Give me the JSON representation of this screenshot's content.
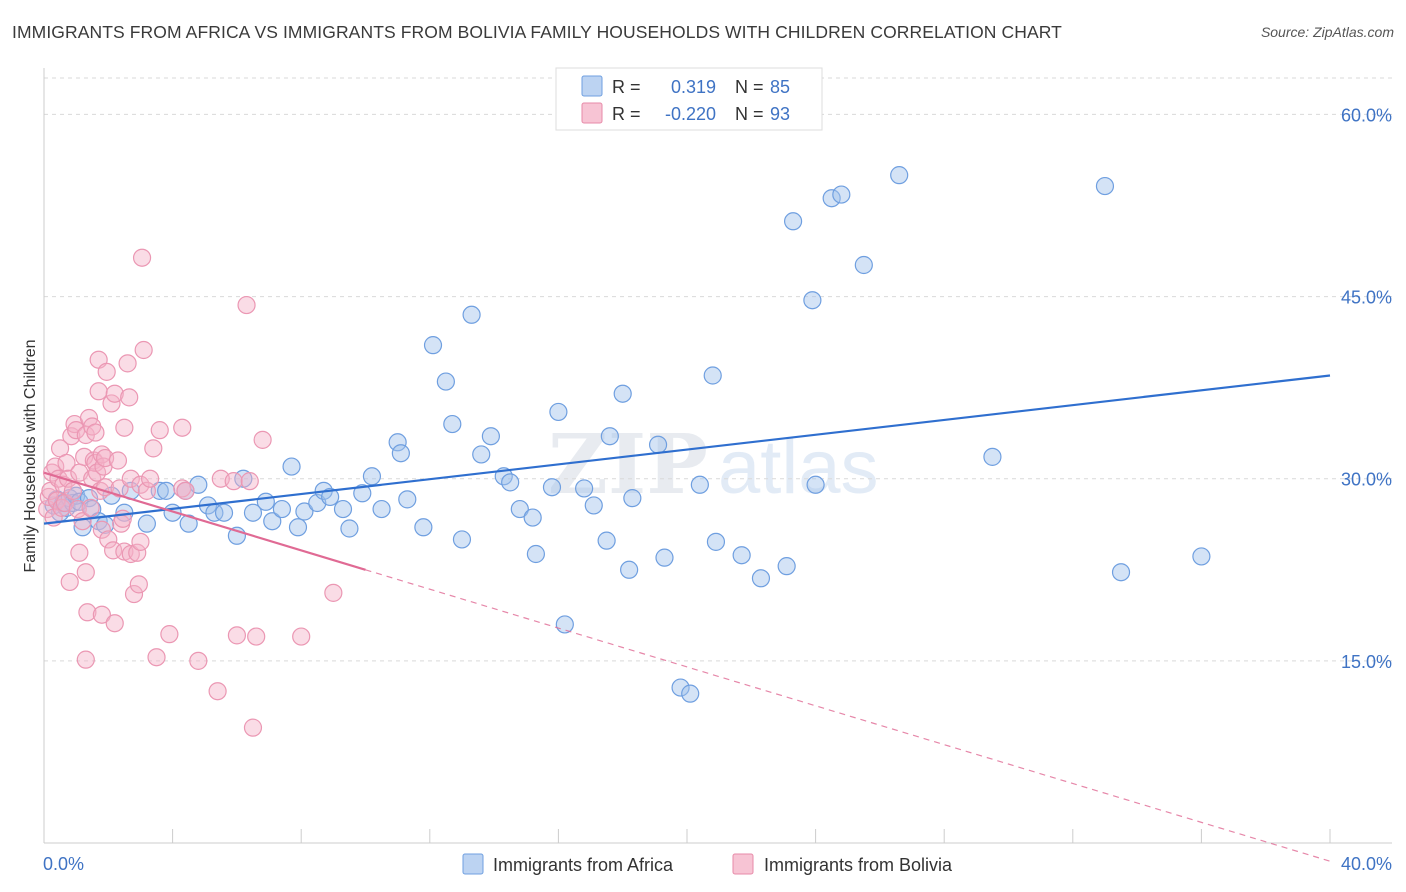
{
  "title": "IMMIGRANTS FROM AFRICA VS IMMIGRANTS FROM BOLIVIA FAMILY HOUSEHOLDS WITH CHILDREN CORRELATION CHART",
  "source": "Source: ZipAtlas.com",
  "watermark": {
    "zip": "ZIP",
    "atlas": "atlas"
  },
  "legend": {
    "r_label": "R =",
    "n_label": "N =",
    "rows": [
      {
        "r": "0.319",
        "n": "85",
        "color": "#6f9fe0",
        "fill": "#bcd3f2"
      },
      {
        "r": "-0.220",
        "n": "93",
        "color": "#e78aa8",
        "fill": "#f7c4d4"
      }
    ]
  },
  "colors": {
    "africa": "#5b8fd6",
    "africa_line": "#2f6fcf",
    "bolivia": "#ef9ab5",
    "bolivia_line": "#e06a94",
    "axis_text": "#3f73c4",
    "grid": "#d9d9d9"
  },
  "chart_data": {
    "type": "scatter",
    "title": "IMMIGRANTS FROM AFRICA VS IMMIGRANTS FROM BOLIVIA FAMILY HOUSEHOLDS WITH CHILDREN CORRELATION CHART",
    "xlabel": "",
    "ylabel": "Family Households with Children",
    "xlim": [
      0,
      40
    ],
    "ylim": [
      0,
      63
    ],
    "x_tick_labels": [
      "0.0%",
      "40.0%"
    ],
    "y_ticks": [
      15,
      30,
      45,
      60
    ],
    "y_tick_labels": [
      "15.0%",
      "30.0%",
      "45.0%",
      "60.0%"
    ],
    "grid": true,
    "legend_position": "top-center",
    "series": [
      {
        "name": "Immigrants from Africa",
        "r": 0.319,
        "n": 85,
        "trend": {
          "x0": 0,
          "y0": 26.3,
          "x1": 40,
          "y1": 38.5
        },
        "points": [
          [
            0.3,
            27.8
          ],
          [
            0.4,
            28.3
          ],
          [
            0.5,
            27.2
          ],
          [
            0.6,
            28.0
          ],
          [
            0.7,
            27.6
          ],
          [
            0.8,
            28.4
          ],
          [
            0.9,
            28.0
          ],
          [
            1.0,
            28.6
          ],
          [
            1.1,
            28.1
          ],
          [
            1.2,
            26.0
          ],
          [
            1.4,
            28.4
          ],
          [
            1.5,
            27.5
          ],
          [
            1.7,
            26.5
          ],
          [
            1.9,
            26.2
          ],
          [
            2.1,
            28.6
          ],
          [
            2.5,
            27.2
          ],
          [
            2.7,
            29.0
          ],
          [
            3.2,
            26.3
          ],
          [
            3.6,
            29.0
          ],
          [
            3.8,
            29.0
          ],
          [
            4.0,
            27.2
          ],
          [
            4.4,
            29.0
          ],
          [
            4.5,
            26.3
          ],
          [
            4.8,
            29.5
          ],
          [
            5.1,
            27.8
          ],
          [
            5.3,
            27.2
          ],
          [
            5.6,
            27.2
          ],
          [
            6.0,
            25.3
          ],
          [
            6.2,
            30.0
          ],
          [
            6.5,
            27.2
          ],
          [
            6.9,
            28.1
          ],
          [
            7.1,
            26.5
          ],
          [
            7.4,
            27.5
          ],
          [
            7.7,
            31.0
          ],
          [
            7.9,
            26.0
          ],
          [
            8.1,
            27.3
          ],
          [
            8.5,
            28.0
          ],
          [
            8.7,
            29.0
          ],
          [
            8.9,
            28.5
          ],
          [
            9.3,
            27.5
          ],
          [
            9.5,
            25.9
          ],
          [
            9.9,
            28.8
          ],
          [
            10.2,
            30.2
          ],
          [
            10.5,
            27.5
          ],
          [
            11.0,
            33.0
          ],
          [
            11.1,
            32.1
          ],
          [
            11.3,
            28.3
          ],
          [
            11.8,
            26.0
          ],
          [
            12.1,
            41.0
          ],
          [
            12.5,
            38.0
          ],
          [
            12.7,
            34.5
          ],
          [
            13.0,
            25.0
          ],
          [
            13.3,
            43.5
          ],
          [
            13.6,
            32.0
          ],
          [
            13.9,
            33.5
          ],
          [
            14.3,
            30.2
          ],
          [
            14.5,
            29.7
          ],
          [
            14.8,
            27.5
          ],
          [
            15.2,
            26.8
          ],
          [
            15.3,
            23.8
          ],
          [
            15.8,
            29.3
          ],
          [
            16.0,
            35.5
          ],
          [
            16.2,
            18.0
          ],
          [
            16.8,
            29.2
          ],
          [
            17.1,
            27.8
          ],
          [
            17.5,
            24.9
          ],
          [
            17.6,
            33.5
          ],
          [
            18.0,
            37.0
          ],
          [
            18.2,
            22.5
          ],
          [
            18.3,
            28.4
          ],
          [
            19.1,
            32.8
          ],
          [
            19.3,
            23.5
          ],
          [
            19.8,
            12.8
          ],
          [
            20.1,
            12.3
          ],
          [
            20.4,
            29.5
          ],
          [
            20.8,
            38.5
          ],
          [
            20.9,
            24.8
          ],
          [
            21.7,
            23.7
          ],
          [
            22.3,
            21.8
          ],
          [
            23.1,
            22.8
          ],
          [
            23.3,
            51.2
          ],
          [
            23.9,
            44.7
          ],
          [
            24.0,
            29.5
          ],
          [
            24.5,
            53.1
          ],
          [
            24.8,
            53.4
          ],
          [
            25.5,
            47.6
          ],
          [
            26.6,
            55.0
          ],
          [
            29.5,
            31.8
          ],
          [
            33.0,
            54.1
          ],
          [
            33.5,
            22.3
          ],
          [
            36.0,
            23.6
          ]
        ]
      },
      {
        "name": "Immigrants from Bolivia",
        "r": -0.22,
        "n": 93,
        "trend": {
          "x0": 0,
          "y0": 30.5,
          "x1": 10,
          "y1": 22.5,
          "dash_x1": 40,
          "dash_y1": -1.5
        },
        "points": [
          [
            0.1,
            27.5
          ],
          [
            0.15,
            28.5
          ],
          [
            0.2,
            29.0
          ],
          [
            0.25,
            30.5
          ],
          [
            0.3,
            26.8
          ],
          [
            0.35,
            31.0
          ],
          [
            0.4,
            28.2
          ],
          [
            0.45,
            30.0
          ],
          [
            0.5,
            32.5
          ],
          [
            0.55,
            27.6
          ],
          [
            0.6,
            29.5
          ],
          [
            0.65,
            28.0
          ],
          [
            0.7,
            31.3
          ],
          [
            0.75,
            30.0
          ],
          [
            0.8,
            21.5
          ],
          [
            0.85,
            33.5
          ],
          [
            0.9,
            29.0
          ],
          [
            0.95,
            34.5
          ],
          [
            1.0,
            34.0
          ],
          [
            1.05,
            27.5
          ],
          [
            1.1,
            30.5
          ],
          [
            1.1,
            23.9
          ],
          [
            1.2,
            26.5
          ],
          [
            1.25,
            31.8
          ],
          [
            1.3,
            33.6
          ],
          [
            1.3,
            22.3
          ],
          [
            1.3,
            15.1
          ],
          [
            1.35,
            19.0
          ],
          [
            1.4,
            35.0
          ],
          [
            1.45,
            27.6
          ],
          [
            1.5,
            30.0
          ],
          [
            1.5,
            34.3
          ],
          [
            1.55,
            31.5
          ],
          [
            1.6,
            33.8
          ],
          [
            1.6,
            31.3
          ],
          [
            1.65,
            30.5
          ],
          [
            1.7,
            37.2
          ],
          [
            1.7,
            39.8
          ],
          [
            1.75,
            29.0
          ],
          [
            1.8,
            32.0
          ],
          [
            1.8,
            18.8
          ],
          [
            1.8,
            25.8
          ],
          [
            1.85,
            31.0
          ],
          [
            1.9,
            29.3
          ],
          [
            1.9,
            31.7
          ],
          [
            1.95,
            38.8
          ],
          [
            2.0,
            25.0
          ],
          [
            2.1,
            36.2
          ],
          [
            2.15,
            24.1
          ],
          [
            2.2,
            37.0
          ],
          [
            2.2,
            18.1
          ],
          [
            2.3,
            31.5
          ],
          [
            2.35,
            29.2
          ],
          [
            2.4,
            26.3
          ],
          [
            2.45,
            26.7
          ],
          [
            2.5,
            34.2
          ],
          [
            2.5,
            24.0
          ],
          [
            2.6,
            39.5
          ],
          [
            2.65,
            36.7
          ],
          [
            2.7,
            30.0
          ],
          [
            2.7,
            23.8
          ],
          [
            2.8,
            20.5
          ],
          [
            2.9,
            23.9
          ],
          [
            2.95,
            21.3
          ],
          [
            3.0,
            29.5
          ],
          [
            3.0,
            24.8
          ],
          [
            3.05,
            48.2
          ],
          [
            3.1,
            40.6
          ],
          [
            3.2,
            29.0
          ],
          [
            3.3,
            30.0
          ],
          [
            3.4,
            32.5
          ],
          [
            3.5,
            15.3
          ],
          [
            3.6,
            34.0
          ],
          [
            3.9,
            17.2
          ],
          [
            4.3,
            34.2
          ],
          [
            4.3,
            29.2
          ],
          [
            4.4,
            29.0
          ],
          [
            4.8,
            15.0
          ],
          [
            5.4,
            12.5
          ],
          [
            5.5,
            30.0
          ],
          [
            5.9,
            29.8
          ],
          [
            6.0,
            17.1
          ],
          [
            6.3,
            44.3
          ],
          [
            6.4,
            29.8
          ],
          [
            6.5,
            9.5
          ],
          [
            6.6,
            17.0
          ],
          [
            6.8,
            33.2
          ],
          [
            8.0,
            17.0
          ],
          [
            9.0,
            20.6
          ]
        ]
      }
    ]
  }
}
